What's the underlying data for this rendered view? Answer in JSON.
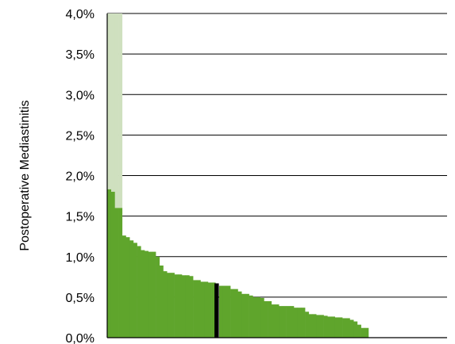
{
  "chart_data": {
    "type": "bar",
    "title": "",
    "xlabel": "",
    "ylabel": "Postoperative Mediastinitis",
    "ylim": [
      0,
      4.0
    ],
    "ytick_labels": [
      "0,0%",
      "0,5%",
      "1,0%",
      "1,5%",
      "2,0%",
      "2,5%",
      "3,0%",
      "3,5%",
      "4,0%"
    ],
    "grid": true,
    "legend": "none",
    "colors": {
      "bar": "#5fa52c",
      "highlight": "#000000",
      "exceeds": "#cfe0bf",
      "grid": "#000000"
    },
    "highlight_index": 29,
    "overflow_values": [
      4.0,
      4.0,
      4.0,
      4.0
    ],
    "values": [
      1.83,
      1.8,
      1.6,
      1.6,
      1.26,
      1.24,
      1.2,
      1.17,
      1.13,
      1.08,
      1.07,
      1.06,
      1.06,
      1.0,
      0.89,
      0.82,
      0.8,
      0.8,
      0.78,
      0.78,
      0.77,
      0.77,
      0.76,
      0.71,
      0.71,
      0.69,
      0.69,
      0.68,
      0.68,
      0.67,
      0.64,
      0.64,
      0.64,
      0.6,
      0.6,
      0.57,
      0.54,
      0.54,
      0.52,
      0.5,
      0.5,
      0.49,
      0.45,
      0.45,
      0.41,
      0.41,
      0.39,
      0.39,
      0.39,
      0.39,
      0.37,
      0.37,
      0.37,
      0.32,
      0.29,
      0.29,
      0.28,
      0.28,
      0.27,
      0.26,
      0.26,
      0.25,
      0.25,
      0.24,
      0.24,
      0.22,
      0.2,
      0.16,
      0.12,
      0.12
    ]
  }
}
